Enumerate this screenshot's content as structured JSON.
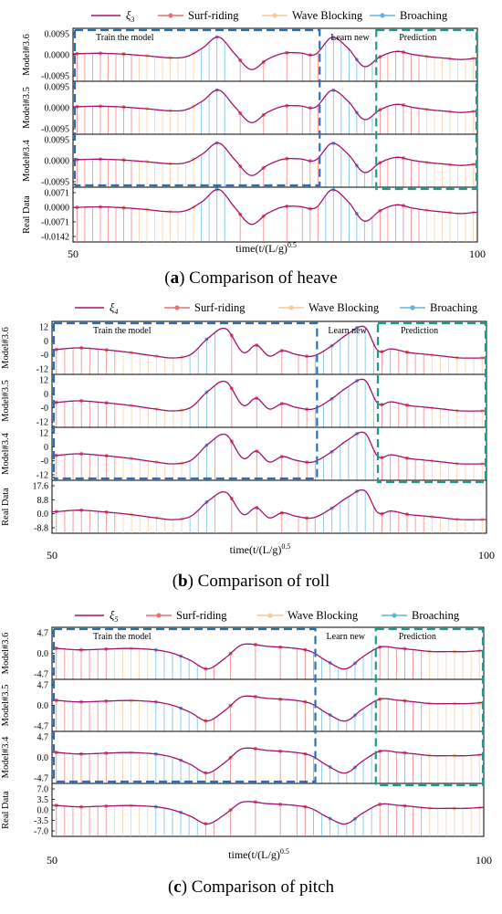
{
  "colors": {
    "signal": "#a3136b",
    "surf": "#ef6f72",
    "block": "#f7c89a",
    "broach": "#5ab5ea",
    "train_box": "#2a6fb5",
    "pred_box": "#1e9a8a"
  },
  "legend_items": {
    "surf": "Surf-riding",
    "block": "Wave Blocking",
    "broach": "Broaching"
  },
  "region_labels": {
    "train": "Train the model",
    "learn": "Learn new",
    "prediction": "Prediction"
  },
  "x_title": "time(t/(L/g)",
  "x_title_sup": "0.5",
  "x_ticks": [
    "50",
    "100"
  ],
  "chart_data": [
    {
      "type": "line",
      "caption_letter": "a",
      "caption_text": "Comparison of heave",
      "legend_symbol": "ξ",
      "legend_sub": "3",
      "x_range": [
        50,
        100
      ],
      "phase_boundaries": {
        "block_start": 58,
        "broach_start": 65,
        "broach_end": 70,
        "train_end": 80.5,
        "learn_end": 87.5
      },
      "panels": [
        {
          "ylabel": "Model#3.6",
          "yticks": [
            "0.0095",
            "0.0000",
            "-0.0095"
          ],
          "ylim": [
            -0.014,
            0.014
          ]
        },
        {
          "ylabel": "Model#3.5",
          "yticks": [
            "0.0095",
            "0.0000",
            "-0.0095"
          ],
          "ylim": [
            -0.014,
            0.014
          ]
        },
        {
          "ylabel": "Model#3.4",
          "yticks": [
            "0.0095",
            "0.0000",
            "-0.0095"
          ],
          "ylim": [
            -0.014,
            0.014
          ]
        },
        {
          "ylabel": "Real Data",
          "yticks": [
            "0.0071",
            "0.0000",
            "-0.0071",
            "-0.0142"
          ],
          "ylim": [
            -0.0165,
            0.0105
          ]
        }
      ],
      "series": {
        "x": [
          50,
          53,
          56,
          59,
          62,
          64,
          66,
          68,
          70,
          72,
          74,
          76,
          78,
          80,
          82,
          84,
          86,
          88,
          90,
          92,
          94,
          96,
          98,
          100
        ],
        "y": [
          0.0005,
          0.0008,
          0.0004,
          -0.0005,
          -0.0016,
          -0.001,
          0.0035,
          0.0094,
          0.0005,
          -0.0078,
          -0.0025,
          0.0008,
          0.001,
          0.0003,
          0.0092,
          0.0035,
          -0.0062,
          -0.001,
          0.0018,
          0.0002,
          -0.001,
          -0.0018,
          -0.0025,
          -0.0018
        ]
      }
    },
    {
      "type": "line",
      "caption_letter": "b",
      "caption_text": "Comparison of roll",
      "legend_symbol": "ξ",
      "legend_sub": "4",
      "x_range": [
        50,
        100
      ],
      "phase_boundaries": {
        "block_start": 58,
        "broach_start": 65,
        "broach_end": 70,
        "train_end": 80.5,
        "learn_end": 87.5
      },
      "panels": [
        {
          "ylabel": "Model#3.6",
          "yticks": [
            "12",
            "0",
            "-0",
            "-12"
          ],
          "ylim": [
            -13,
            16
          ]
        },
        {
          "ylabel": "Model#3.5",
          "yticks": [
            "12",
            "0",
            "-0",
            "-12"
          ],
          "ylim": [
            -13,
            16
          ]
        },
        {
          "ylabel": "Model#3.4",
          "yticks": [
            "12",
            "0",
            "-0",
            "-12"
          ],
          "ylim": [
            -13,
            16
          ]
        },
        {
          "ylabel": "Real Data",
          "yticks": [
            "17.6",
            "8.8",
            "0.0",
            "-8.8"
          ],
          "ylim": [
            -12,
            19
          ]
        }
      ],
      "series": {
        "x": [
          50,
          53,
          56,
          59,
          62,
          64,
          66,
          68,
          70,
          72,
          73.5,
          75,
          76.5,
          78,
          80,
          82,
          84,
          86,
          87.5,
          89,
          91,
          93,
          95,
          97,
          100
        ],
        "y": [
          0.5,
          1.5,
          0.5,
          -1,
          -3,
          -4,
          -2,
          7,
          12,
          -1,
          3,
          -3,
          0,
          -2,
          -3,
          2,
          9,
          13,
          0,
          1,
          -1,
          -2,
          -3,
          -4,
          -4
        ]
      }
    },
    {
      "type": "line",
      "caption_letter": "c",
      "caption_text": "Comparison of pitch",
      "legend_symbol": "ξ",
      "legend_sub": "5",
      "x_range": [
        50,
        100
      ],
      "phase_boundaries": {
        "block_start": 57,
        "broach_start": 62,
        "broach_end": 67,
        "train_end": 80.5,
        "learn_end": 87.5
      },
      "panels": [
        {
          "ylabel": "Model#3.6",
          "yticks": [
            "4.7",
            "0.0",
            "-4.7"
          ],
          "ylim": [
            -7.5,
            7.5
          ]
        },
        {
          "ylabel": "Model#3.5",
          "yticks": [
            "4.7",
            "0.0",
            "-4.7"
          ],
          "ylim": [
            -7.5,
            7.5
          ]
        },
        {
          "ylabel": "Model#3.4",
          "yticks": [
            "4.7",
            "0.0",
            "-4.7"
          ],
          "ylim": [
            -7.5,
            7.5
          ]
        },
        {
          "ylabel": "Real Data",
          "yticks": [
            "7.0",
            "3.5",
            "0.0",
            "-3.5",
            "-7.0"
          ],
          "ylim": [
            -8.5,
            8.5
          ]
        }
      ],
      "series": {
        "x": [
          50,
          53,
          56,
          59,
          62,
          64,
          66,
          68,
          70,
          72,
          75,
          78,
          80,
          82,
          84,
          86,
          88,
          90,
          92,
          94,
          96,
          98,
          100
        ],
        "y": [
          1.5,
          1.0,
          1.2,
          1.4,
          1.0,
          0.0,
          -2.0,
          -4.5,
          -1.5,
          2.5,
          2.0,
          1.5,
          0.5,
          -2.5,
          -4.5,
          -1.0,
          1.8,
          1.5,
          1.0,
          0.5,
          0.5,
          0.5,
          0.8
        ]
      }
    }
  ]
}
